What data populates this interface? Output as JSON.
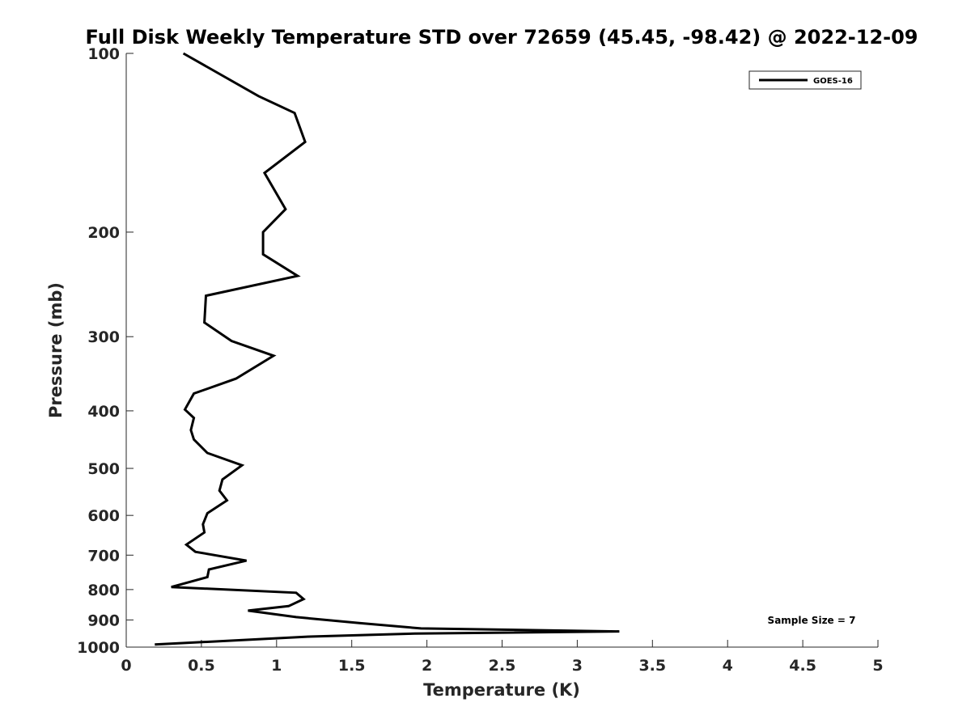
{
  "chart_data": {
    "type": "line",
    "title": "Full Disk Weekly Temperature STD over 72659 (45.45, -98.42) @ 2022-12-09",
    "xlabel": "Temperature (K)",
    "ylabel": "Pressure (mb)",
    "xlim": [
      0,
      5
    ],
    "ylim": [
      100,
      1000
    ],
    "y_scale": "log",
    "y_reversed": true,
    "x_ticks": [
      "0",
      "0.5",
      "1",
      "1.5",
      "2",
      "2.5",
      "3",
      "3.5",
      "4",
      "4.5",
      "5"
    ],
    "y_ticks": [
      "100",
      "200",
      "300",
      "400",
      "500",
      "600",
      "700",
      "800",
      "900",
      "1000"
    ],
    "grid": false,
    "legend_position": "top-right",
    "series": [
      {
        "name": "GOES-16",
        "color": "#000000",
        "x": [
          0.38,
          0.88,
          1.12,
          1.19,
          0.92,
          1.06,
          0.91,
          0.91,
          1.14,
          0.53,
          0.52,
          0.7,
          0.98,
          0.73,
          0.45,
          0.39,
          0.45,
          0.43,
          0.45,
          0.54,
          0.77,
          0.64,
          0.62,
          0.67,
          0.54,
          0.51,
          0.52,
          0.4,
          0.46,
          0.8,
          0.55,
          0.54,
          0.3,
          1.13,
          1.18,
          1.08,
          0.81,
          1.13,
          1.55,
          1.96,
          3.28,
          1.92,
          1.22,
          0.19
        ],
        "y": [
          100,
          118,
          126,
          141,
          159,
          183,
          200,
          218,
          237,
          256,
          284,
          305,
          323,
          353,
          374,
          398,
          411,
          431,
          447,
          471,
          494,
          522,
          545,
          566,
          595,
          621,
          641,
          672,
          691,
          715,
          740,
          762,
          792,
          810,
          830,
          853,
          868,
          890,
          911,
          930,
          941,
          949,
          960,
          990
        ]
      }
    ],
    "annotations": [
      "Sample Size = 7"
    ]
  }
}
